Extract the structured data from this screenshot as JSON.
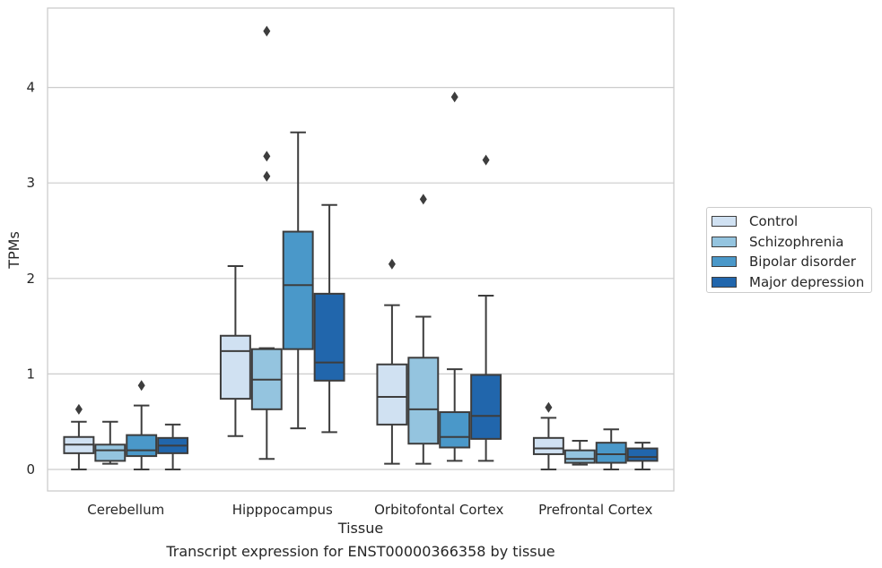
{
  "chart_data": {
    "type": "box",
    "title": "",
    "xlabel": "Tissue",
    "ylabel": "TPMs",
    "ylim": [
      -0.22,
      4.8
    ],
    "yticks": [
      0,
      1,
      2,
      3,
      4
    ],
    "grid": "horizontal",
    "legend_position": "right",
    "categories": [
      "Cerebellum",
      "Hipppocampus",
      "Orbitofontal Cortex",
      "Prefrontal Cortex"
    ],
    "series": [
      {
        "name": "Control",
        "color": "#d0e1f2",
        "boxes": [
          {
            "min": 0.0,
            "q1": 0.17,
            "median": 0.26,
            "q3": 0.34,
            "max": 0.5,
            "outliers": [
              0.63
            ]
          },
          {
            "min": 0.35,
            "q1": 0.74,
            "median": 1.24,
            "q3": 1.4,
            "max": 2.13,
            "outliers": []
          },
          {
            "min": 0.06,
            "q1": 0.47,
            "median": 0.76,
            "q3": 1.1,
            "max": 1.72,
            "outliers": [
              2.15
            ]
          },
          {
            "min": 0.0,
            "q1": 0.16,
            "median": 0.22,
            "q3": 0.33,
            "max": 0.54,
            "outliers": [
              0.65
            ]
          }
        ]
      },
      {
        "name": "Schizophrenia",
        "color": "#94c4df",
        "boxes": [
          {
            "min": 0.06,
            "q1": 0.09,
            "median": 0.2,
            "q3": 0.26,
            "max": 0.5,
            "outliers": []
          },
          {
            "min": 0.11,
            "q1": 0.63,
            "median": 0.94,
            "q3": 1.26,
            "max": 1.27,
            "outliers": [
              3.07,
              3.28,
              4.59
            ]
          },
          {
            "min": 0.06,
            "q1": 0.27,
            "median": 0.63,
            "q3": 1.17,
            "max": 1.6,
            "outliers": [
              2.83
            ]
          },
          {
            "min": 0.05,
            "q1": 0.07,
            "median": 0.11,
            "q3": 0.2,
            "max": 0.3,
            "outliers": []
          }
        ]
      },
      {
        "name": "Bipolar disorder",
        "color": "#4a98c9",
        "boxes": [
          {
            "min": 0.0,
            "q1": 0.14,
            "median": 0.2,
            "q3": 0.36,
            "max": 0.67,
            "outliers": [
              0.88
            ]
          },
          {
            "min": 0.43,
            "q1": 1.26,
            "median": 1.93,
            "q3": 2.49,
            "max": 3.53,
            "outliers": []
          },
          {
            "min": 0.09,
            "q1": 0.23,
            "median": 0.34,
            "q3": 0.6,
            "max": 1.05,
            "outliers": [
              3.9
            ]
          },
          {
            "min": 0.0,
            "q1": 0.07,
            "median": 0.16,
            "q3": 0.28,
            "max": 0.42,
            "outliers": []
          }
        ]
      },
      {
        "name": "Major depression",
        "color": "#2166ac",
        "boxes": [
          {
            "min": 0.0,
            "q1": 0.17,
            "median": 0.25,
            "q3": 0.33,
            "max": 0.47,
            "outliers": []
          },
          {
            "min": 0.39,
            "q1": 0.93,
            "median": 1.12,
            "q3": 1.84,
            "max": 2.77,
            "outliers": []
          },
          {
            "min": 0.09,
            "q1": 0.32,
            "median": 0.56,
            "q3": 0.99,
            "max": 1.82,
            "outliers": [
              3.24
            ]
          },
          {
            "min": 0.0,
            "q1": 0.09,
            "median": 0.13,
            "q3": 0.22,
            "max": 0.28,
            "outliers": []
          }
        ]
      }
    ]
  },
  "caption": "Transcript expression for ENST00000366358 by tissue"
}
